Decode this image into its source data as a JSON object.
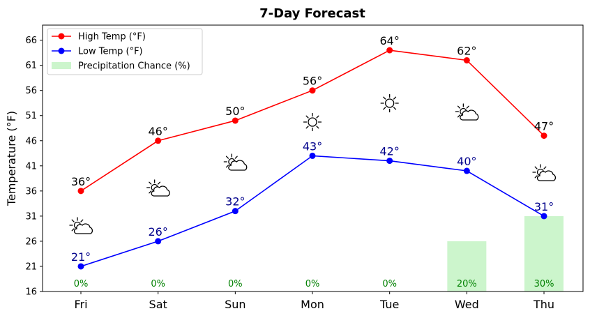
{
  "chart_data": {
    "type": "line",
    "title": "7-Day Forecast",
    "ylabel": "Temperature (°F)",
    "xlabel": "",
    "categories": [
      "Fri",
      "Sat",
      "Sun",
      "Mon",
      "Tue",
      "Wed",
      "Thu"
    ],
    "ylim": [
      16,
      69
    ],
    "yticks": [
      16,
      21,
      26,
      31,
      36,
      41,
      46,
      51,
      56,
      61,
      66
    ],
    "series": [
      {
        "name": "High Temp (°F)",
        "color": "#ff0000",
        "values": [
          36,
          46,
          50,
          56,
          64,
          62,
          47
        ],
        "labels": [
          "36°",
          "46°",
          "50°",
          "56°",
          "64°",
          "62°",
          "47°"
        ]
      },
      {
        "name": "Low Temp (°F)",
        "color": "#0000ff",
        "values": [
          21,
          26,
          32,
          43,
          42,
          40,
          31
        ],
        "labels": [
          "21°",
          "26°",
          "32°",
          "43°",
          "42°",
          "40°",
          "31°"
        ]
      }
    ],
    "precipitation": {
      "name": "Precipitation Chance (%)",
      "color": "#ccf5cc",
      "values": [
        0,
        0,
        0,
        0,
        0,
        20,
        30
      ],
      "labels": [
        "0%",
        "0%",
        "0%",
        "0%",
        "0%",
        "20%",
        "30%"
      ]
    },
    "weather_icons": [
      "partly-cloudy-icon",
      "partly-cloudy-icon",
      "partly-cloudy-icon",
      "sunny-icon",
      "sunny-icon",
      "partly-cloudy-icon",
      "partly-cloudy-icon"
    ],
    "grid": false,
    "legend_position": "top-left"
  }
}
